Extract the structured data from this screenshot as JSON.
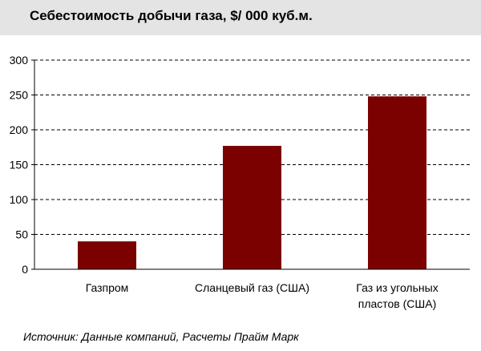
{
  "chart_data": {
    "type": "bar",
    "title": "Себестоимость добычи газа, $/ 000 куб.м.",
    "categories": [
      [
        "Газпром"
      ],
      [
        "Сланцевый газ (США)"
      ],
      [
        "Газ из угольных",
        "пластов (США)"
      ]
    ],
    "values": [
      40,
      177,
      248
    ],
    "ylim": [
      0,
      300
    ],
    "yticks": [
      0,
      50,
      100,
      150,
      200,
      250,
      300
    ],
    "xlabel": "",
    "ylabel": "",
    "grid": "dashed horizontal",
    "bar_color": "#7b0000",
    "legend": "none"
  },
  "source_text": "Источник: Данные компаний, Расчеты Прайм Марк"
}
